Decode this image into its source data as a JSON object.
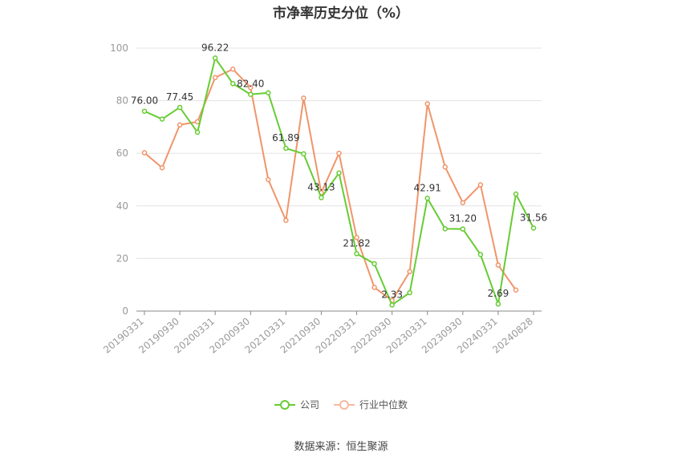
{
  "chart_data": {
    "type": "line",
    "title": "市净率历史分位（%）",
    "x": [
      "20190331",
      "20190630",
      "20190930",
      "20191231",
      "20200331",
      "20200630",
      "20200930",
      "20201231",
      "20210331",
      "20210630",
      "20210930",
      "20211231",
      "20220331",
      "20220630",
      "20220930",
      "20221231",
      "20230331",
      "20230630",
      "20230930",
      "20231231",
      "20240331",
      "20240630",
      "20240828"
    ],
    "x_tick_labels": [
      "20190331",
      "20190930",
      "20200331",
      "20200930",
      "20210331",
      "20210930",
      "20220331",
      "20220930",
      "20230331",
      "20230930",
      "20240331",
      "20240828"
    ],
    "ylim": [
      0,
      100
    ],
    "y_ticks": [
      0,
      20,
      40,
      60,
      80,
      100
    ],
    "grid": true,
    "legend_position": "bottom-center",
    "series": [
      {
        "name": "公司",
        "color": "#66cc33",
        "values": [
          76.0,
          73.0,
          77.45,
          68.0,
          96.22,
          86.5,
          82.4,
          83.0,
          61.89,
          59.8,
          43.13,
          52.5,
          21.82,
          18.0,
          2.33,
          7.0,
          42.91,
          31.3,
          31.2,
          21.5,
          2.69,
          44.5,
          31.56
        ],
        "labels": [
          "76.00",
          null,
          "77.45",
          null,
          "96.22",
          null,
          "82.40",
          null,
          "61.89",
          null,
          "43.13",
          null,
          "21.82",
          null,
          "2.33",
          null,
          "42.91",
          null,
          "31.20",
          null,
          "2.69",
          null,
          "31.56"
        ]
      },
      {
        "name": "行业中位数",
        "color": "#f0956a",
        "values": [
          60.2,
          54.5,
          70.8,
          72.0,
          88.8,
          92.0,
          85.0,
          50.0,
          34.5,
          81.0,
          45.0,
          60.0,
          28.0,
          9.0,
          4.0,
          15.0,
          78.8,
          54.8,
          41.2,
          48.0,
          17.5,
          8.0,
          null
        ]
      }
    ]
  },
  "source_text": "数据来源：恒生聚源"
}
